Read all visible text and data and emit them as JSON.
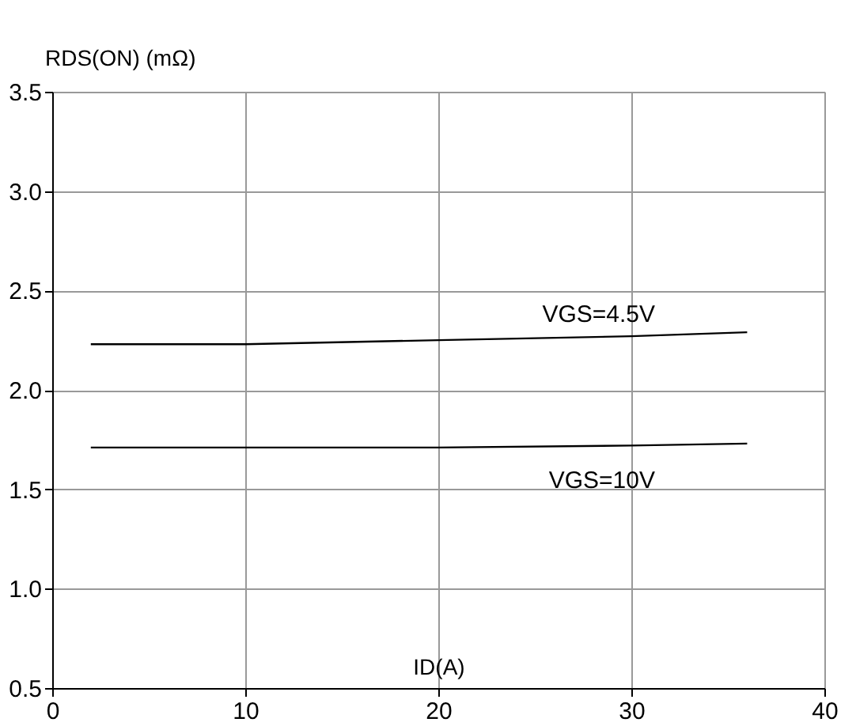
{
  "chart_data": {
    "type": "line",
    "xlabel": "ID(A)",
    "ylabel": "RDS(ON) (mΩ)",
    "x": [
      2,
      10,
      20,
      30,
      36
    ],
    "series": [
      {
        "name": "VGS=4.5V",
        "color": "#000000",
        "values": [
          2.23,
          2.23,
          2.25,
          2.27,
          2.29
        ]
      },
      {
        "name": "VGS=10V",
        "color": "#000000",
        "values": [
          1.71,
          1.71,
          1.71,
          1.72,
          1.73
        ]
      }
    ],
    "xlim": [
      0,
      40
    ],
    "xticks": [
      0,
      10,
      20,
      30,
      40
    ],
    "ylim": [
      0.5,
      3.5
    ],
    "yticks": [
      {
        "value": 0.5,
        "label": "0.5"
      },
      {
        "value": 1.0,
        "label": "1.0"
      },
      {
        "value": 1.5,
        "label": "1.5"
      },
      {
        "value": 2.0,
        "label": "2.0"
      },
      {
        "value": 2.5,
        "label": "2.5"
      },
      {
        "value": 3.0,
        "label": "3.0"
      },
      {
        "value": 3.5,
        "label": "3.5"
      }
    ],
    "grid": true,
    "legend": false,
    "marker": "none",
    "line_style": "solid"
  }
}
